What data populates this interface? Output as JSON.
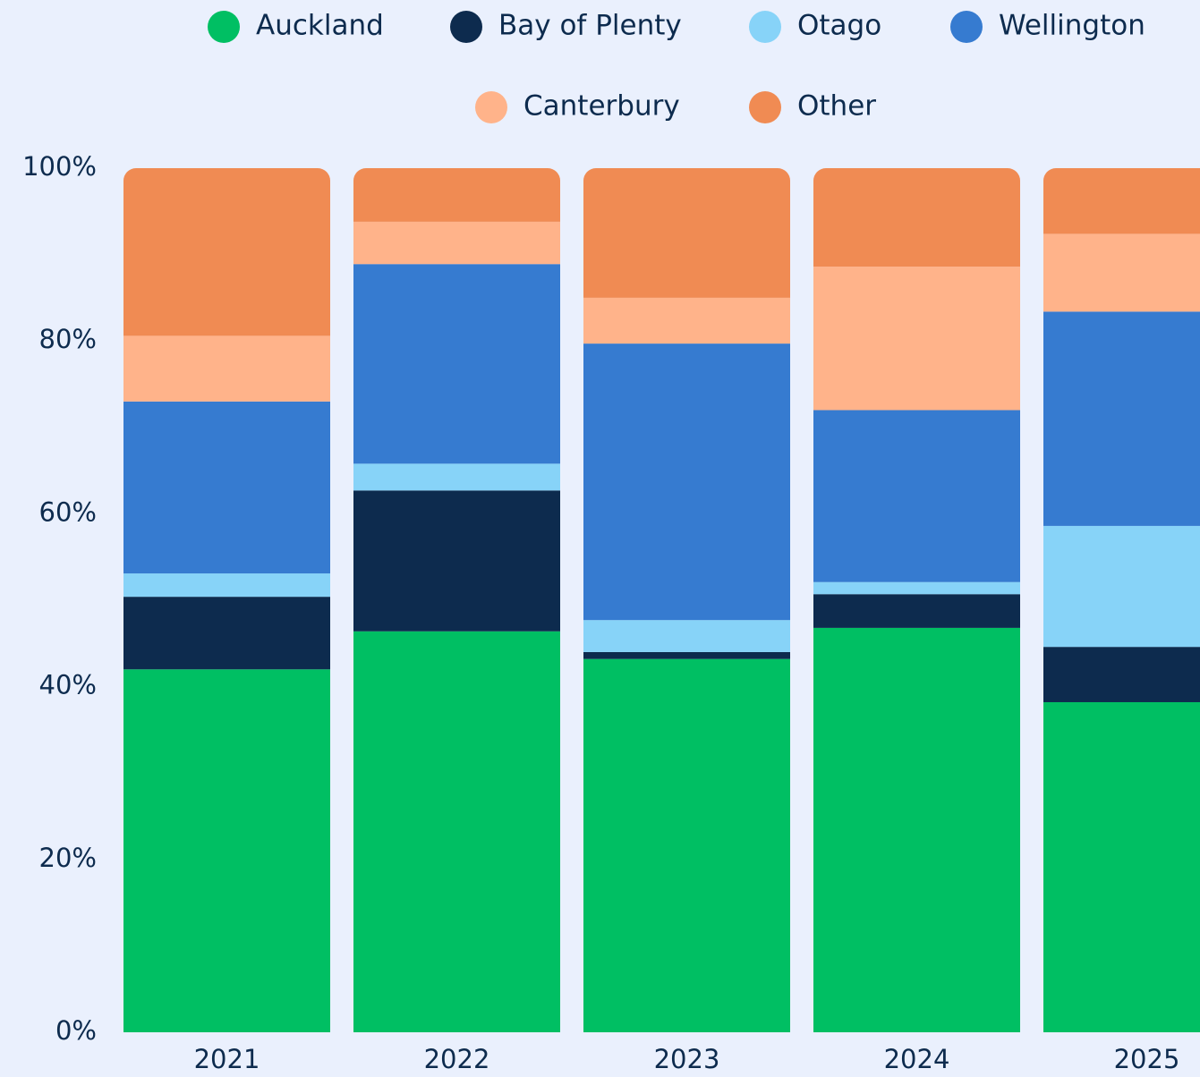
{
  "chart_data": {
    "type": "stacked_bar",
    "categories": [
      "2021",
      "2022",
      "2023",
      "2024",
      "2025"
    ],
    "series": [
      {
        "name": "Auckland",
        "color": "#00bf63",
        "values": [
          42.0,
          46.4,
          43.2,
          46.8,
          38.2
        ]
      },
      {
        "name": "Bay of Plenty",
        "color": "#0d2b4e",
        "values": [
          8.4,
          16.3,
          0.8,
          3.9,
          6.4
        ]
      },
      {
        "name": "Otago",
        "color": "#87d3f8",
        "values": [
          2.7,
          3.1,
          3.7,
          1.4,
          14.0
        ]
      },
      {
        "name": "Wellington",
        "color": "#367bd0",
        "values": [
          19.9,
          23.1,
          32.0,
          19.9,
          24.8
        ]
      },
      {
        "name": "Canterbury",
        "color": "#ffb38a",
        "values": [
          7.6,
          4.9,
          5.3,
          16.6,
          9.0
        ]
      },
      {
        "name": "Other",
        "color": "#f08b53",
        "values": [
          19.4,
          6.2,
          15.0,
          11.4,
          7.6
        ]
      }
    ],
    "ylim": [
      0,
      100
    ],
    "yticks": [
      {
        "value": 0,
        "label": "0%"
      },
      {
        "value": 20,
        "label": "20%"
      },
      {
        "value": 40,
        "label": "40%"
      },
      {
        "value": 60,
        "label": "60%"
      },
      {
        "value": 80,
        "label": "80%"
      },
      {
        "value": 100,
        "label": "100%"
      }
    ],
    "legend": "top"
  }
}
